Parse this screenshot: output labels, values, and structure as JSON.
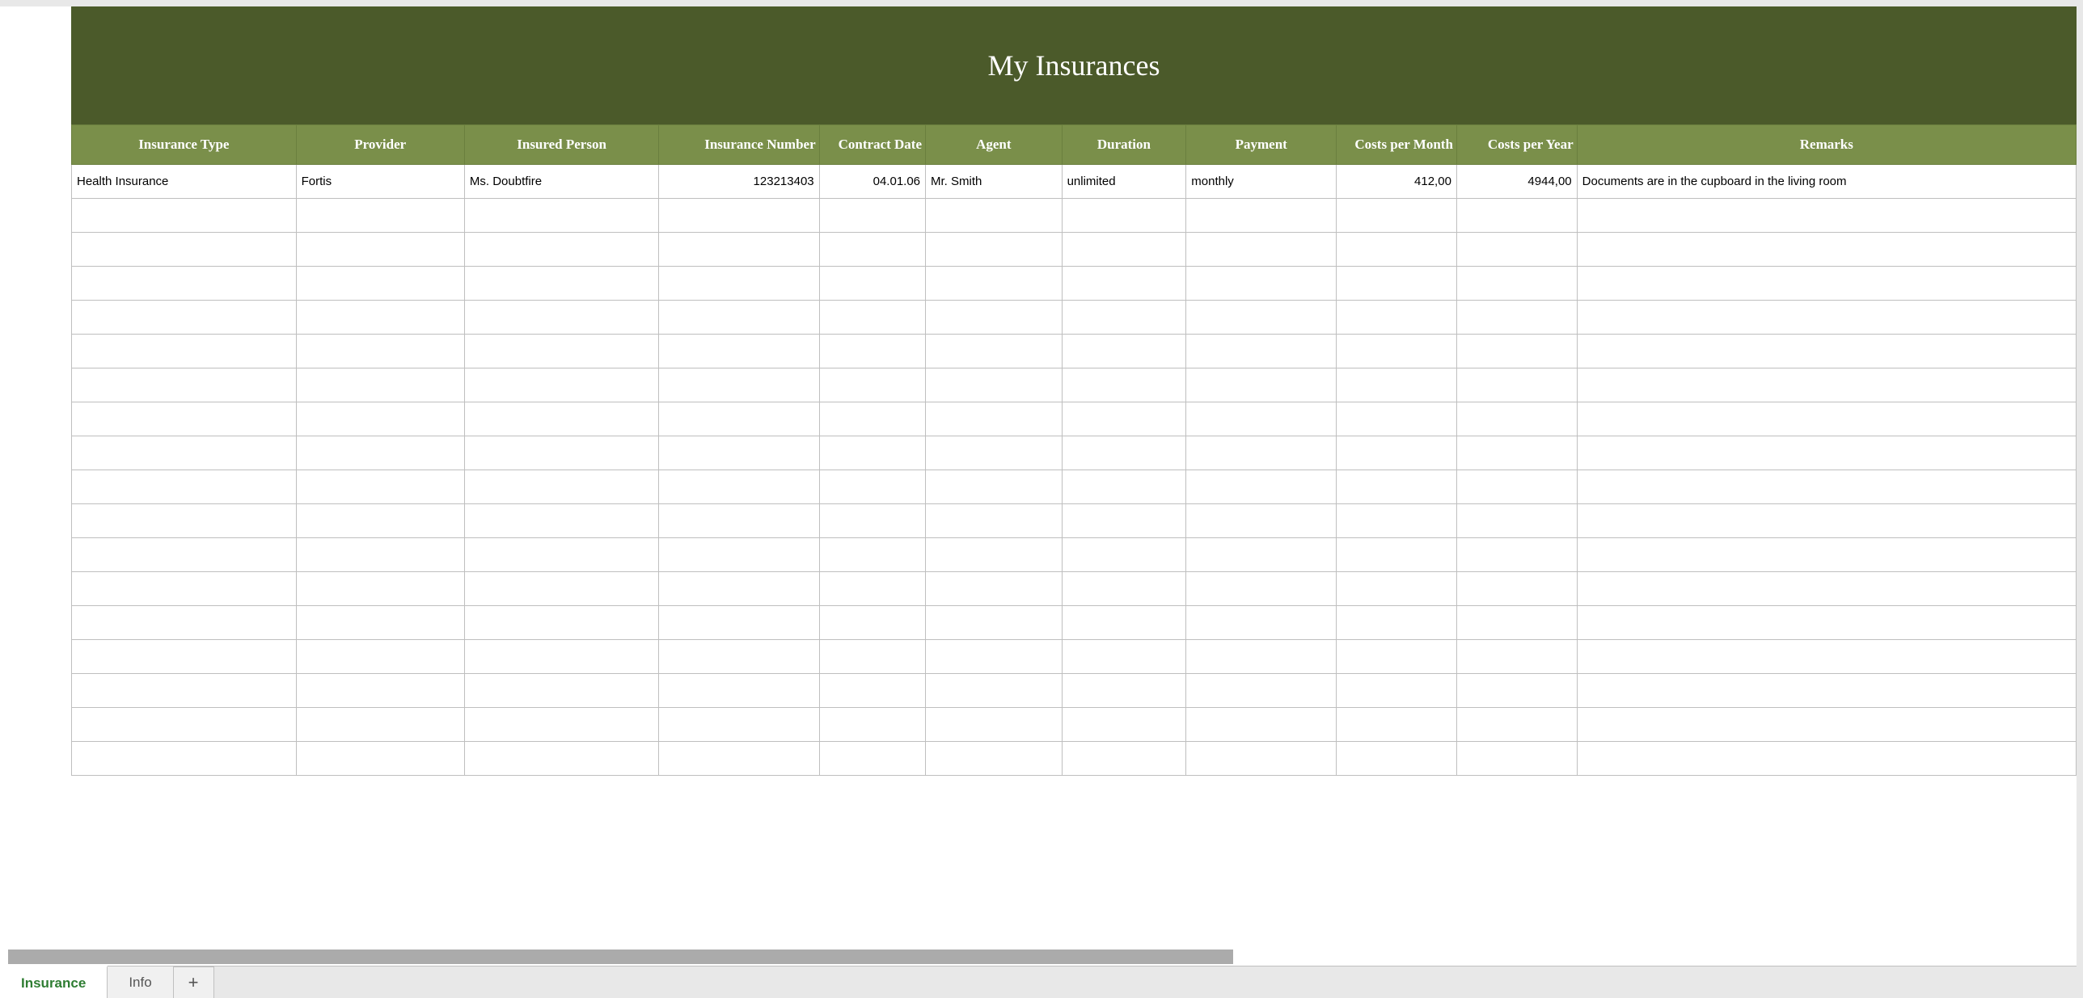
{
  "title": "My Insurances",
  "columns": [
    "Insurance Type",
    "Provider",
    "Insured Person",
    "Insurance Number",
    "Contract Date",
    "Agent",
    "Duration",
    "Payment",
    "Costs per Month",
    "Costs per Year",
    "Remarks"
  ],
  "column_classes": [
    "col-insurance-type",
    "col-provider",
    "col-insured-person",
    "col-insurance-number",
    "col-contract-date",
    "col-agent",
    "col-duration",
    "col-payment",
    "col-costs-month",
    "col-costs-year",
    "col-remarks"
  ],
  "column_align": [
    "left",
    "left",
    "left",
    "right",
    "right",
    "left",
    "left",
    "left",
    "right",
    "right",
    "left"
  ],
  "rows": [
    [
      "Health Insurance",
      "Fortis",
      "Ms. Doubtfire",
      "123213403",
      "04.01.06",
      "Mr. Smith",
      "unlimited",
      "monthly",
      "412,00",
      "4944,00",
      "Documents are in the cupboard in the living room"
    ],
    [
      "",
      "",
      "",
      "",
      "",
      "",
      "",
      "",
      "",
      "",
      ""
    ],
    [
      "",
      "",
      "",
      "",
      "",
      "",
      "",
      "",
      "",
      "",
      ""
    ],
    [
      "",
      "",
      "",
      "",
      "",
      "",
      "",
      "",
      "",
      "",
      ""
    ],
    [
      "",
      "",
      "",
      "",
      "",
      "",
      "",
      "",
      "",
      "",
      ""
    ],
    [
      "",
      "",
      "",
      "",
      "",
      "",
      "",
      "",
      "",
      "",
      ""
    ],
    [
      "",
      "",
      "",
      "",
      "",
      "",
      "",
      "",
      "",
      "",
      ""
    ],
    [
      "",
      "",
      "",
      "",
      "",
      "",
      "",
      "",
      "",
      "",
      ""
    ],
    [
      "",
      "",
      "",
      "",
      "",
      "",
      "",
      "",
      "",
      "",
      ""
    ],
    [
      "",
      "",
      "",
      "",
      "",
      "",
      "",
      "",
      "",
      "",
      ""
    ],
    [
      "",
      "",
      "",
      "",
      "",
      "",
      "",
      "",
      "",
      "",
      ""
    ],
    [
      "",
      "",
      "",
      "",
      "",
      "",
      "",
      "",
      "",
      "",
      ""
    ],
    [
      "",
      "",
      "",
      "",
      "",
      "",
      "",
      "",
      "",
      "",
      ""
    ],
    [
      "",
      "",
      "",
      "",
      "",
      "",
      "",
      "",
      "",
      "",
      ""
    ],
    [
      "",
      "",
      "",
      "",
      "",
      "",
      "",
      "",
      "",
      "",
      ""
    ],
    [
      "",
      "",
      "",
      "",
      "",
      "",
      "",
      "",
      "",
      "",
      ""
    ],
    [
      "",
      "",
      "",
      "",
      "",
      "",
      "",
      "",
      "",
      "",
      ""
    ],
    [
      "",
      "",
      "",
      "",
      "",
      "",
      "",
      "",
      "",
      "",
      ""
    ]
  ],
  "tabs": [
    {
      "label": "Insurance",
      "active": true
    },
    {
      "label": "Info",
      "active": false
    }
  ],
  "add_tab_label": "+",
  "colors": {
    "title_bg": "#4b5a2a",
    "header_bg": "#7a8f4a",
    "header_border": "#6a7f3e",
    "cell_border": "#bfbfbf",
    "workspace_bg": "#e8e8e8",
    "active_tab_text": "#2e7d32",
    "scrollbar": "#ababab"
  }
}
